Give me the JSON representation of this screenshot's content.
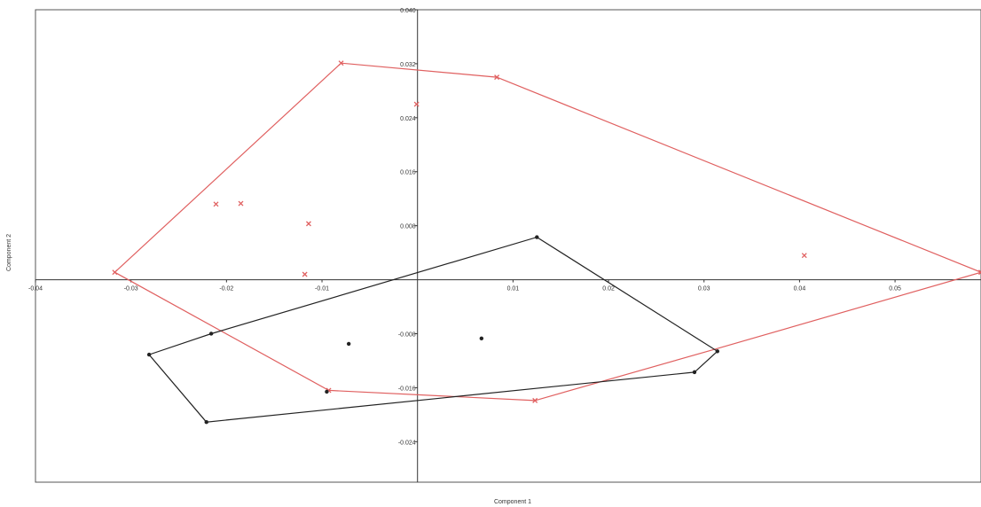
{
  "chart_data": {
    "type": "scatter",
    "xlabel": "Component 1",
    "ylabel": "Component 2",
    "xlim": [
      -0.04,
      0.059
    ],
    "ylim": [
      -0.03,
      0.04
    ],
    "x_ticks": [
      {
        "value": -0.04,
        "label": "-0.04"
      },
      {
        "value": -0.03,
        "label": "-0.03"
      },
      {
        "value": -0.02,
        "label": "-0.02"
      },
      {
        "value": -0.01,
        "label": "-0.01"
      },
      {
        "value": 0.01,
        "label": "0.01"
      },
      {
        "value": 0.02,
        "label": "0.02"
      },
      {
        "value": 0.03,
        "label": "0.03"
      },
      {
        "value": 0.04,
        "label": "0.04"
      },
      {
        "value": 0.05,
        "label": "0.05"
      }
    ],
    "y_ticks": [
      {
        "value": 0.04,
        "label": "0.040"
      },
      {
        "value": 0.032,
        "label": "0.032"
      },
      {
        "value": 0.024,
        "label": "0.024"
      },
      {
        "value": 0.016,
        "label": "0.016"
      },
      {
        "value": 0.008,
        "label": "0.008"
      },
      {
        "value": -0.008,
        "label": "-0.008"
      },
      {
        "value": -0.016,
        "label": "-0.016"
      },
      {
        "value": -0.024,
        "label": "-0.024"
      }
    ],
    "grid": false,
    "series": [
      {
        "color": "#e06060",
        "marker": "cross",
        "points": [
          [
            -0.0317,
            0.0011
          ],
          [
            -0.008,
            0.0321
          ],
          [
            0.0083,
            0.03
          ],
          [
            -0.0001,
            0.026
          ],
          [
            -0.0211,
            0.0112
          ],
          [
            -0.0185,
            0.0113
          ],
          [
            -0.0114,
            0.0083
          ],
          [
            -0.0118,
            0.0008
          ],
          [
            0.0405,
            0.0036
          ],
          [
            0.059,
            0.0011
          ],
          [
            0.0123,
            -0.0179
          ],
          [
            -0.0093,
            -0.0164
          ]
        ],
        "hull": [
          [
            -0.0317,
            0.0011
          ],
          [
            -0.008,
            0.0321
          ],
          [
            0.0083,
            0.03
          ],
          [
            0.059,
            0.0011
          ],
          [
            0.0314,
            -0.0102
          ],
          [
            0.0123,
            -0.0179
          ],
          [
            -0.0093,
            -0.0164
          ]
        ]
      },
      {
        "color": "#222222",
        "marker": "dot",
        "points": [
          [
            0.0125,
            0.0063
          ],
          [
            0.0314,
            -0.0106
          ],
          [
            0.029,
            -0.0137
          ],
          [
            -0.0221,
            -0.0211
          ],
          [
            -0.0281,
            -0.0111
          ],
          [
            -0.0216,
            -0.008
          ],
          [
            -0.0072,
            -0.0095
          ],
          [
            0.0067,
            -0.0087
          ],
          [
            -0.0095,
            -0.0166
          ]
        ],
        "hull": [
          [
            0.0125,
            0.0063
          ],
          [
            0.0314,
            -0.0106
          ],
          [
            0.029,
            -0.0137
          ],
          [
            -0.0221,
            -0.0211
          ],
          [
            -0.0281,
            -0.0111
          ],
          [
            -0.0216,
            -0.008
          ]
        ]
      }
    ]
  }
}
